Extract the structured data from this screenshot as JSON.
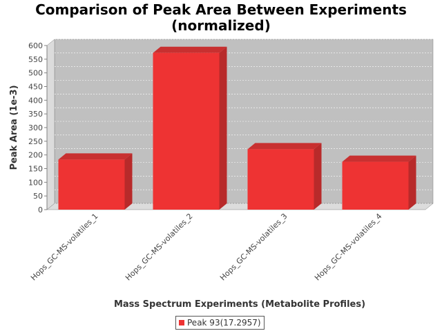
{
  "chart_data": {
    "type": "bar",
    "title": [
      "Comparison of Peak Area Between Experiments",
      "(normalized)"
    ],
    "xlabel": "Mass Spectrum Experiments (Metabolite Profiles)",
    "ylabel": "Peak Area (1e-3)",
    "categories": [
      "Hops_GC-MS-volatiles_1",
      "Hops_GC-MS-volatiles_2",
      "Hops_GC-MS-volatiles_3",
      "Hops_GC-MS-volatiles_4"
    ],
    "series": [
      {
        "name": "Peak 93(17.2957)",
        "values": [
          183,
          573,
          221,
          175
        ],
        "color": "#ee3333"
      }
    ],
    "ylim": [
      0,
      600
    ],
    "yticks": [
      "0",
      "50",
      "100",
      "150",
      "200",
      "250",
      "300",
      "350",
      "400",
      "450",
      "500",
      "550",
      "600"
    ],
    "grid": true,
    "legend_position": "bottom-center",
    "colors": {
      "plot_background": "#c0c0c0",
      "bar": "#ee3333",
      "bar_side": "#b82a2a",
      "bar_top": "#c83030"
    }
  }
}
